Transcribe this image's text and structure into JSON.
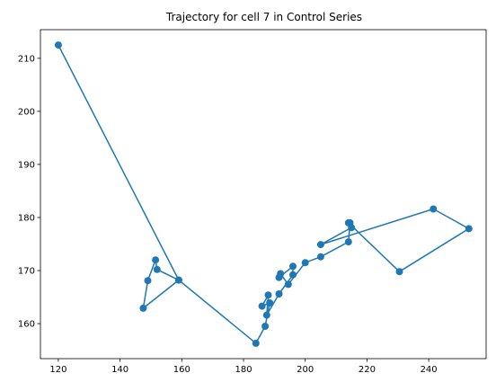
{
  "chart_data": {
    "type": "line",
    "title": "Trajectory for cell 7 in Control Series",
    "xlabel": "",
    "ylabel": "",
    "xlim": [
      114.2,
      258.6
    ],
    "ylim": [
      153.4,
      215.4
    ],
    "xticks": [
      120,
      140,
      160,
      180,
      200,
      220,
      240
    ],
    "yticks": [
      160,
      170,
      180,
      190,
      200,
      210
    ],
    "markers": true,
    "grid": false,
    "colors": {
      "series": "#1f77b4"
    },
    "series": [
      {
        "name": "",
        "points": [
          [
            120.0,
            212.5
          ],
          [
            159.0,
            168.2
          ],
          [
            147.5,
            162.9
          ],
          [
            149.0,
            168.1
          ],
          [
            151.5,
            172.0
          ],
          [
            152.0,
            170.2
          ],
          [
            159.0,
            168.2
          ],
          [
            184.0,
            156.3
          ],
          [
            187.0,
            159.5
          ],
          [
            188.5,
            163.9
          ],
          [
            186.0,
            163.3
          ],
          [
            188.0,
            165.4
          ],
          [
            187.5,
            161.6
          ],
          [
            191.5,
            165.6
          ],
          [
            196.0,
            169.2
          ],
          [
            196.0,
            170.8
          ],
          [
            191.5,
            168.7
          ],
          [
            192.0,
            169.4
          ],
          [
            194.5,
            167.4
          ],
          [
            200.0,
            171.5
          ],
          [
            205.0,
            172.6
          ],
          [
            214.0,
            175.4
          ],
          [
            214.5,
            179.0
          ],
          [
            215.0,
            178.1
          ],
          [
            205.0,
            174.9
          ],
          [
            241.5,
            181.6
          ],
          [
            253.0,
            177.9
          ],
          [
            230.5,
            169.8
          ],
          [
            214.0,
            179.0
          ]
        ]
      }
    ]
  }
}
